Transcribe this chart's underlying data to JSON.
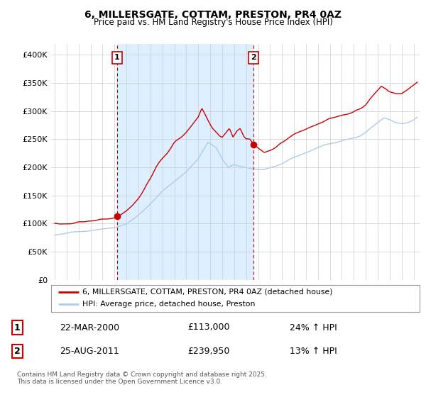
{
  "title": "6, MILLERSGATE, COTTAM, PRESTON, PR4 0AZ",
  "subtitle": "Price paid vs. HM Land Registry's House Price Index (HPI)",
  "xlim": [
    1994.7,
    2025.5
  ],
  "ylim": [
    0,
    420000
  ],
  "yticks": [
    0,
    50000,
    100000,
    150000,
    200000,
    250000,
    300000,
    350000,
    400000
  ],
  "ytick_labels": [
    "£0",
    "£50K",
    "£100K",
    "£150K",
    "£200K",
    "£250K",
    "£300K",
    "£350K",
    "£400K"
  ],
  "xticks": [
    1995,
    1996,
    1997,
    1998,
    1999,
    2000,
    2001,
    2002,
    2003,
    2004,
    2005,
    2006,
    2007,
    2008,
    2009,
    2010,
    2011,
    2012,
    2013,
    2014,
    2015,
    2016,
    2017,
    2018,
    2019,
    2020,
    2021,
    2022,
    2023,
    2024,
    2025
  ],
  "hpi_color": "#aaccee",
  "price_color": "#cc0000",
  "shade_color": "#ddeeff",
  "sale1_x": 2000.22,
  "sale1_y": 113000,
  "sale2_x": 2011.64,
  "sale2_y": 239950,
  "legend_line1": "6, MILLERSGATE, COTTAM, PRESTON, PR4 0AZ (detached house)",
  "legend_line2": "HPI: Average price, detached house, Preston",
  "sale1_date": "22-MAR-2000",
  "sale1_price": "£113,000",
  "sale1_hpi": "24% ↑ HPI",
  "sale2_date": "25-AUG-2011",
  "sale2_price": "£239,950",
  "sale2_hpi": "13% ↑ HPI",
  "footer": "Contains HM Land Registry data © Crown copyright and database right 2025.\nThis data is licensed under the Open Government Licence v3.0.",
  "bg_color": "#ffffff",
  "grid_color": "#cccccc",
  "hpi_anchors_t": [
    1995.0,
    1996.0,
    1997.0,
    1998.0,
    1999.0,
    2000.0,
    2001.0,
    2002.0,
    2003.0,
    2004.0,
    2005.0,
    2006.0,
    2007.0,
    2007.8,
    2008.5,
    2009.0,
    2009.5,
    2010.0,
    2010.5,
    2011.0,
    2011.5,
    2012.0,
    2012.5,
    2013.0,
    2013.5,
    2014.0,
    2014.5,
    2015.0,
    2015.5,
    2016.0,
    2016.5,
    2017.0,
    2017.5,
    2018.0,
    2018.5,
    2019.0,
    2019.5,
    2020.0,
    2020.5,
    2021.0,
    2021.5,
    2022.0,
    2022.5,
    2023.0,
    2023.5,
    2024.0,
    2024.5,
    2025.0,
    2025.3
  ],
  "hpi_anchors_v": [
    80000,
    83000,
    86000,
    88000,
    90000,
    92000,
    100000,
    115000,
    135000,
    158000,
    175000,
    192000,
    215000,
    245000,
    235000,
    215000,
    200000,
    205000,
    202000,
    200000,
    198000,
    196000,
    196000,
    200000,
    203000,
    207000,
    213000,
    218000,
    222000,
    226000,
    230000,
    235000,
    240000,
    243000,
    245000,
    248000,
    250000,
    252000,
    255000,
    262000,
    272000,
    280000,
    288000,
    285000,
    280000,
    278000,
    280000,
    285000,
    290000
  ],
  "price_anchors_t": [
    1995.0,
    1996.0,
    1997.0,
    1998.0,
    1999.0,
    1999.5,
    2000.0,
    2000.22,
    2000.5,
    2001.0,
    2001.5,
    2002.0,
    2002.5,
    2003.0,
    2003.5,
    2004.0,
    2004.5,
    2005.0,
    2005.5,
    2006.0,
    2006.5,
    2007.0,
    2007.3,
    2007.8,
    2008.2,
    2008.8,
    2009.0,
    2009.3,
    2009.6,
    2009.9,
    2010.2,
    2010.5,
    2010.8,
    2011.0,
    2011.3,
    2011.64,
    2011.9,
    2012.2,
    2012.5,
    2013.0,
    2013.5,
    2014.0,
    2014.5,
    2015.0,
    2015.5,
    2016.0,
    2016.5,
    2017.0,
    2017.5,
    2018.0,
    2018.5,
    2019.0,
    2019.5,
    2020.0,
    2020.5,
    2021.0,
    2021.5,
    2022.0,
    2022.3,
    2022.6,
    2023.0,
    2023.5,
    2024.0,
    2024.5,
    2025.0,
    2025.3
  ],
  "price_anchors_v": [
    100000,
    100000,
    103000,
    105000,
    108000,
    110000,
    111000,
    113000,
    115000,
    122000,
    132000,
    145000,
    162000,
    180000,
    200000,
    215000,
    230000,
    243000,
    253000,
    262000,
    275000,
    290000,
    305000,
    285000,
    270000,
    255000,
    252000,
    260000,
    270000,
    255000,
    265000,
    270000,
    255000,
    250000,
    250000,
    239950,
    235000,
    230000,
    225000,
    230000,
    235000,
    243000,
    252000,
    258000,
    263000,
    268000,
    273000,
    278000,
    283000,
    287000,
    290000,
    293000,
    296000,
    298000,
    303000,
    310000,
    325000,
    338000,
    345000,
    340000,
    333000,
    330000,
    332000,
    338000,
    345000,
    350000
  ]
}
